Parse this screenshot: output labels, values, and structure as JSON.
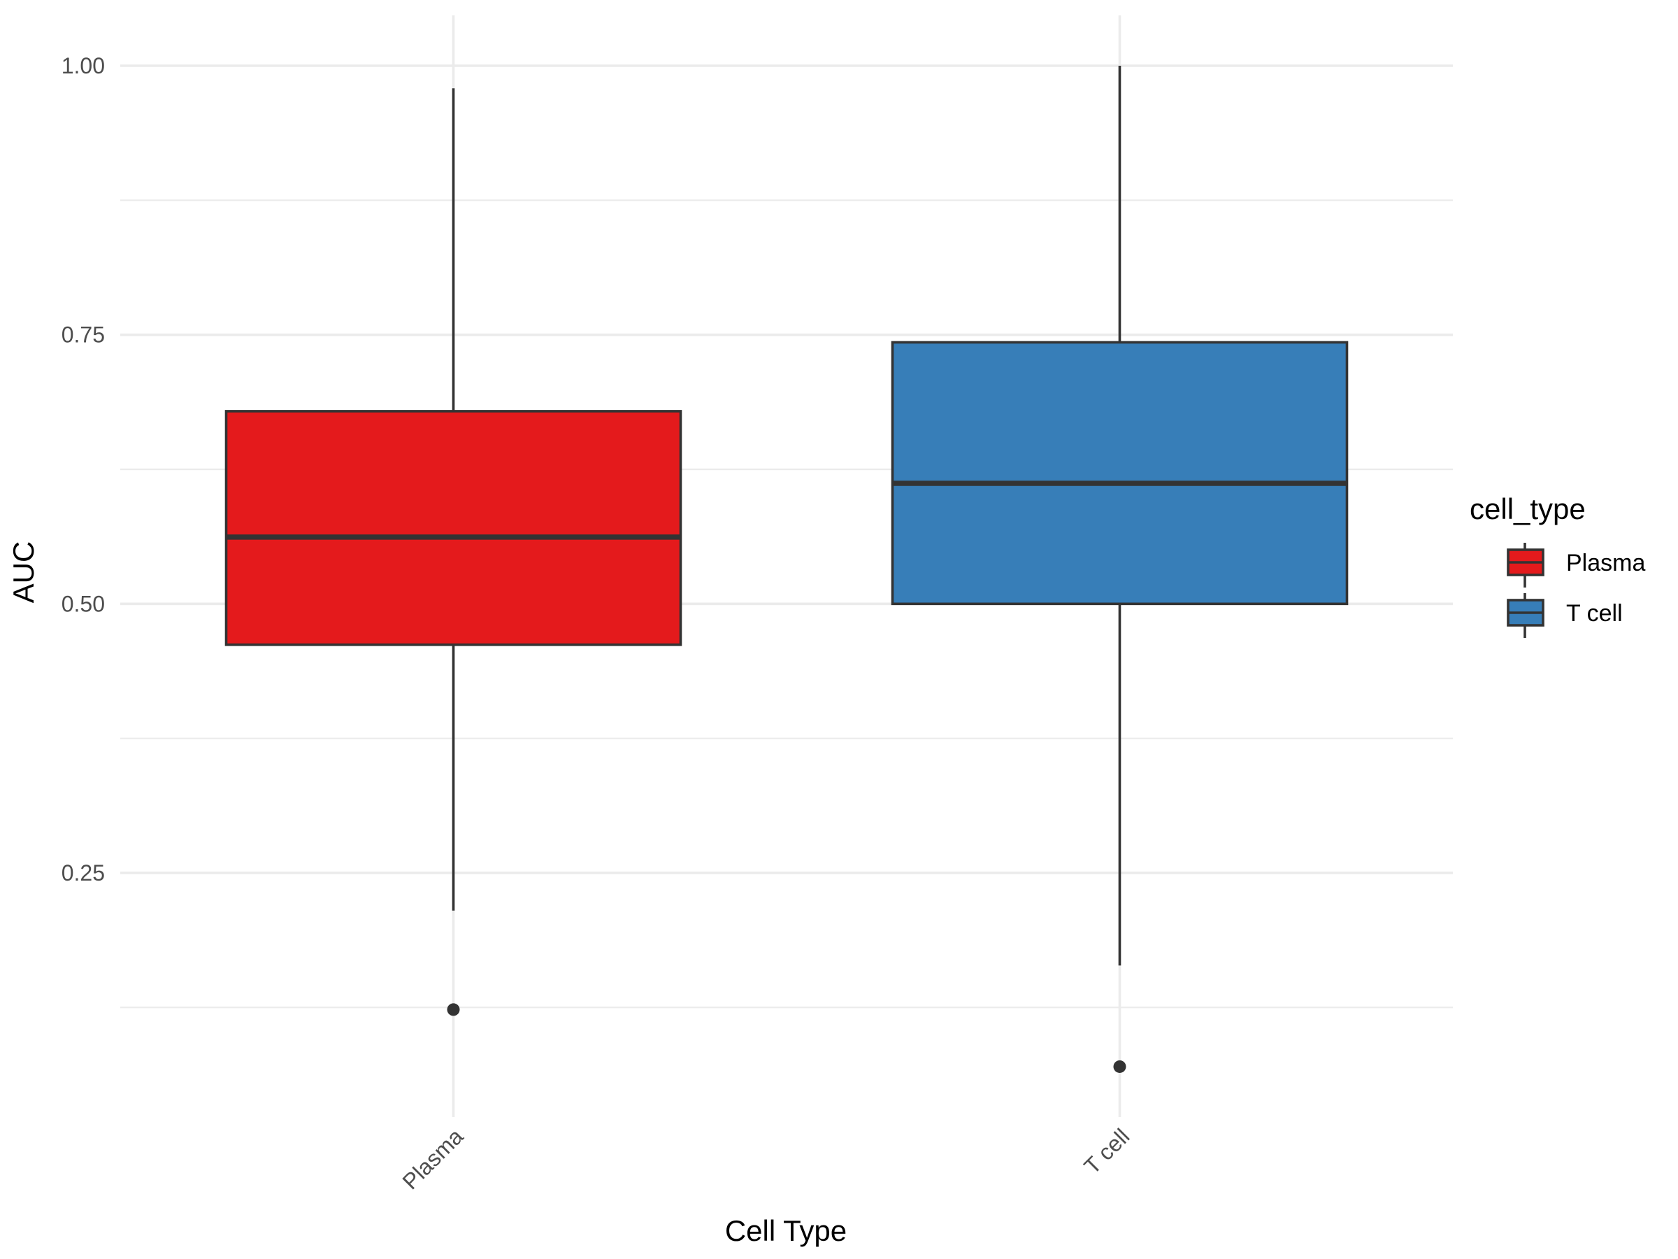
{
  "chart_data": {
    "type": "boxplot",
    "title": "",
    "xlabel": "Cell Type",
    "ylabel": "AUC",
    "ylim": [
      0.05,
      1.05
    ],
    "yticks": [
      0.25,
      0.5,
      0.75,
      1.0
    ],
    "ytick_labels": [
      "0.25",
      "0.50",
      "0.75",
      "1.00"
    ],
    "grid": true,
    "legend_title": "cell_type",
    "legend_position": "right",
    "categories": [
      "Plasma",
      "T cell"
    ],
    "series": [
      {
        "name": "Plasma",
        "color": "#E41A1C",
        "lower_whisker": 0.215,
        "q1": 0.462,
        "median": 0.562,
        "q3": 0.679,
        "upper_whisker": 0.979,
        "outliers": [
          0.123
        ]
      },
      {
        "name": "T cell",
        "color": "#377EB8",
        "lower_whisker": 0.164,
        "q1": 0.5,
        "median": 0.612,
        "q3": 0.743,
        "upper_whisker": 1.0,
        "outliers": [
          0.07
        ]
      }
    ]
  }
}
